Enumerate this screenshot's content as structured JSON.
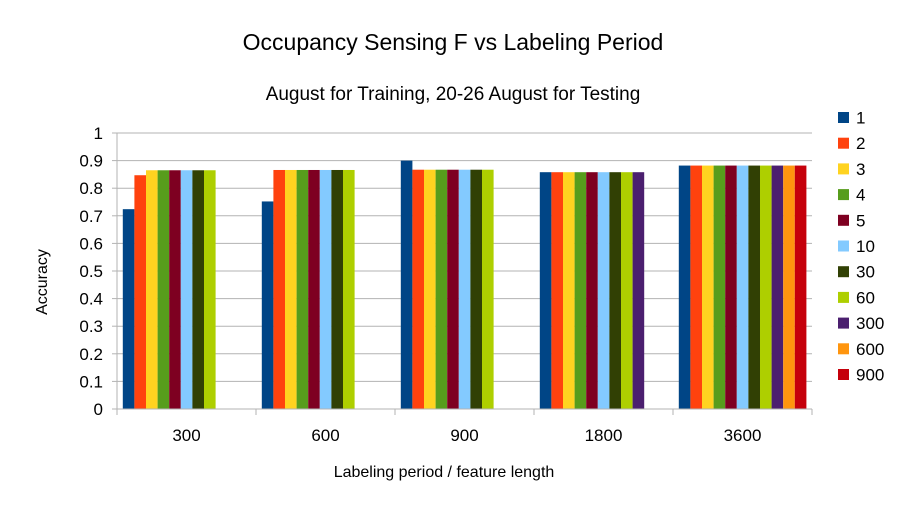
{
  "chart_data": {
    "type": "bar",
    "title": "Occupancy Sensing F vs Labeling Period",
    "subtitle": "August for Training, 20-26 August for Testing",
    "xlabel": "Labeling period / feature length",
    "ylabel": "Accuracy",
    "ylim": [
      0,
      1
    ],
    "yticks": [
      "0",
      "0.1",
      "0.2",
      "0.3",
      "0.4",
      "0.5",
      "0.6",
      "0.7",
      "0.8",
      "0.9",
      "1"
    ],
    "grid": true,
    "legend_position": "right",
    "categories": [
      "300",
      "600",
      "900",
      "1800",
      "3600"
    ],
    "series": [
      {
        "name": "1",
        "color": "#004586",
        "values": [
          0.724,
          0.752,
          0.9,
          0.858,
          0.882
        ]
      },
      {
        "name": "2",
        "color": "#ff420e",
        "values": [
          0.847,
          0.866,
          0.867,
          0.858,
          0.882
        ]
      },
      {
        "name": "3",
        "color": "#ffd320",
        "values": [
          0.865,
          0.866,
          0.867,
          0.858,
          0.882
        ]
      },
      {
        "name": "4",
        "color": "#579d1c",
        "values": [
          0.865,
          0.866,
          0.867,
          0.858,
          0.882
        ]
      },
      {
        "name": "5",
        "color": "#7e0021",
        "values": [
          0.865,
          0.866,
          0.867,
          0.858,
          0.882
        ]
      },
      {
        "name": "10",
        "color": "#83caff",
        "values": [
          0.865,
          0.866,
          0.867,
          0.858,
          0.882
        ]
      },
      {
        "name": "30",
        "color": "#314004",
        "values": [
          0.865,
          0.866,
          0.867,
          0.858,
          0.882
        ]
      },
      {
        "name": "60",
        "color": "#aecf00",
        "values": [
          0.865,
          0.866,
          0.867,
          0.858,
          0.882
        ]
      },
      {
        "name": "300",
        "color": "#4b1f6f",
        "values": [
          null,
          null,
          null,
          0.858,
          0.882
        ]
      },
      {
        "name": "600",
        "color": "#ff950e",
        "values": [
          null,
          null,
          null,
          null,
          0.882
        ]
      },
      {
        "name": "900",
        "color": "#c5000b",
        "values": [
          null,
          null,
          null,
          null,
          0.882
        ]
      }
    ]
  }
}
